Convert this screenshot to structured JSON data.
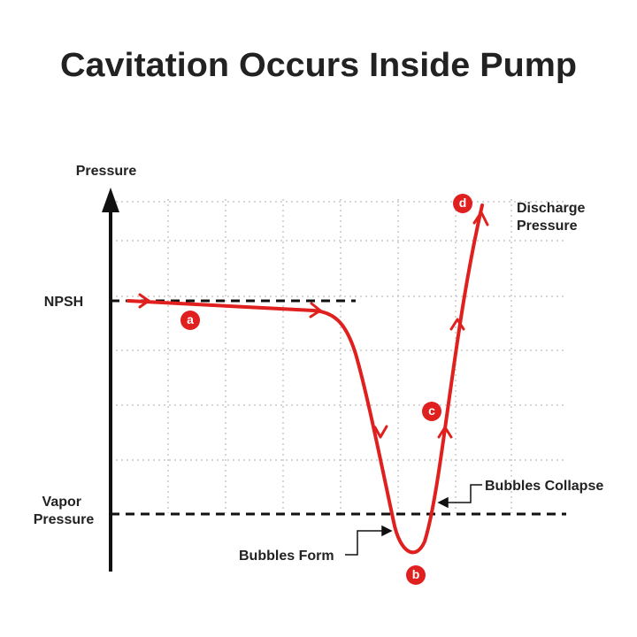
{
  "title": "Cavitation Occurs Inside Pump",
  "axis": {
    "label": "Pressure"
  },
  "levels": [
    {
      "lines": [
        "NPSH"
      ]
    },
    {
      "lines": [
        "Vapor",
        "Pressure"
      ]
    },
    {
      "lines": [
        "Discharge",
        "Pressure"
      ]
    }
  ],
  "callouts": [
    {
      "label": "Bubbles Collapse"
    },
    {
      "label": "Bubbles Form"
    }
  ],
  "points": [
    {
      "label": "a"
    },
    {
      "label": "b"
    },
    {
      "label": "c"
    },
    {
      "label": "d"
    }
  ]
}
